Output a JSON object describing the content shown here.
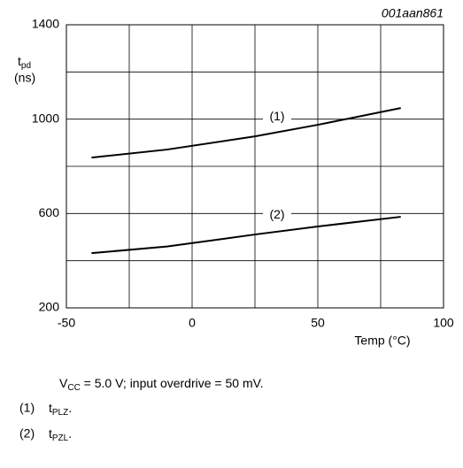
{
  "chart_data": {
    "type": "line",
    "code": "001aan861",
    "y_label": {
      "main": "t",
      "sub": "pd",
      "unit": "(ns)"
    },
    "x_label": "Temp (°C)",
    "x": [
      -40,
      -10,
      25,
      50,
      83
    ],
    "xlim": [
      -50,
      100
    ],
    "xticks": [
      -50,
      0,
      50,
      100
    ],
    "xminor": [
      -25,
      25,
      75
    ],
    "ylim": [
      200,
      1400
    ],
    "yticks": [
      200,
      600,
      1000,
      1400
    ],
    "yminor": [
      400,
      800,
      1200
    ],
    "grid": true,
    "series": [
      {
        "label": "(1)",
        "name": "t",
        "name_sub": "PLZ",
        "name_end": ".",
        "color": "#000000",
        "values": [
          837,
          871,
          927,
          976,
          1047
        ]
      },
      {
        "label": "(2)",
        "name": "t",
        "name_sub": "PZL",
        "name_end": ".",
        "color": "#000000",
        "values": [
          432,
          460,
          511,
          545,
          586
        ]
      }
    ],
    "note": {
      "prefix": "V",
      "sub": "CC",
      "rest": " = 5.0 V; input overdrive = 50 mV."
    }
  }
}
